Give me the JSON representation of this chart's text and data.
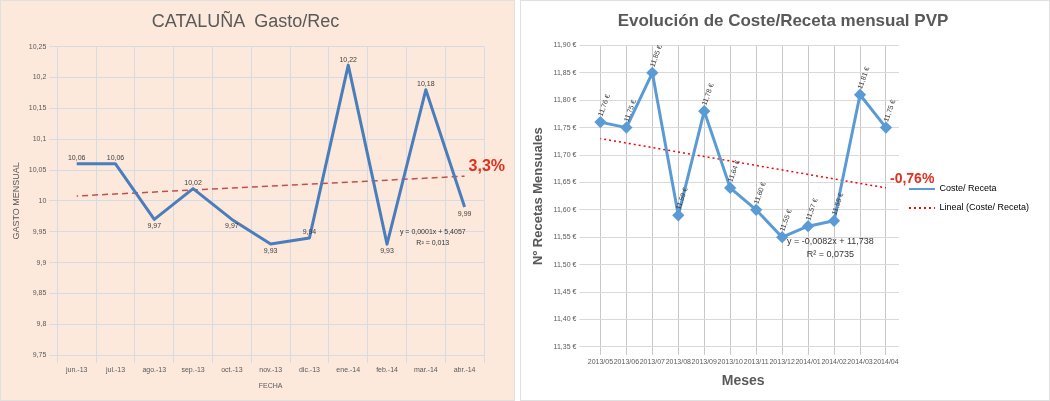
{
  "chart_data": [
    {
      "type": "line",
      "title": "CATALUÑA  Gasto/Rec",
      "xlabel": "FECHA",
      "ylabel": "GASTO MENSUAL",
      "categories": [
        "jun.-13",
        "jul.-13",
        "ago.-13",
        "sep.-13",
        "oct.-13",
        "nov.-13",
        "dic.-13",
        "ene.-14",
        "feb.-14",
        "mar.-14",
        "abr.-14"
      ],
      "series": [
        {
          "color": "#4a7ebb",
          "values": [
            10.06,
            10.06,
            9.97,
            10.02,
            9.97,
            9.93,
            9.94,
            10.22,
            9.93,
            10.18,
            9.99
          ],
          "value_labels": [
            "10,06",
            "10,06",
            "9,97",
            "10,02",
            "9,97",
            "9,93",
            "9,94",
            "10,22",
            "9,93",
            "10,18",
            "9,99"
          ]
        },
        {
          "type": "line",
          "color": "#c0504d",
          "line_style": "dashed",
          "x": [
            "jun.-13",
            "abr.-14"
          ],
          "values": [
            10.008,
            10.04
          ]
        }
      ],
      "ylim": [
        9.75,
        10.25
      ],
      "yticks": [
        {
          "value": 9.75,
          "label": "9,75"
        },
        {
          "value": 9.8,
          "label": "9,8"
        },
        {
          "value": 9.85,
          "label": "9,85"
        },
        {
          "value": 9.9,
          "label": "9,9"
        },
        {
          "value": 9.95,
          "label": "9,95"
        },
        {
          "value": 10,
          "label": "10"
        },
        {
          "value": 10.05,
          "label": "10,05"
        },
        {
          "value": 10.1,
          "label": "10,1"
        },
        {
          "value": 10.15,
          "label": "10,15"
        },
        {
          "value": 10.2,
          "label": "10,2"
        },
        {
          "value": 10.25,
          "label": "10,25"
        }
      ],
      "grid": true,
      "annotations": [
        "3,3%",
        "y = 0,0001x + 5,4057",
        "R² = 0,013"
      ]
    },
    {
      "type": "line",
      "title": "Evolución de Coste/Receta mensual PVP",
      "xlabel": "Meses",
      "ylabel": "Nº Recetas Mensuales",
      "categories": [
        "2013/05",
        "2013/06",
        "2013/07",
        "2013/08",
        "2013/09",
        "2013/10",
        "2013/11",
        "2013/12",
        "2014/01",
        "2014/02",
        "2014/03",
        "2014/04"
      ],
      "series": [
        {
          "name": "Coste/ Receta",
          "color": "#5b9bd5",
          "values": [
            11.76,
            11.75,
            11.85,
            11.59,
            11.78,
            11.64,
            11.6,
            11.55,
            11.57,
            11.58,
            11.81,
            11.75
          ],
          "value_labels": [
            "11,76 €",
            "11,75 €",
            "11,85 €",
            "11,59 €",
            "11,78 €",
            "11,64 €",
            "11,60 €",
            "11,55 €",
            "11,57 €",
            "11,58 €",
            "11,81 €",
            "11,75 €"
          ]
        },
        {
          "name": "Lineal (Coste/ Receta)",
          "type": "line",
          "color": "#ff0000",
          "line_style": "dotted",
          "marker": "none",
          "x": [
            "2013/05",
            "2014/04"
          ],
          "values": [
            11.73,
            11.64
          ]
        }
      ],
      "ylim": [
        11.35,
        11.9
      ],
      "yticks": [
        {
          "value": 11.35,
          "label": "11,35 €"
        },
        {
          "value": 11.4,
          "label": "11,40 €"
        },
        {
          "value": 11.45,
          "label": "11,45 €"
        },
        {
          "value": 11.5,
          "label": "11,50 €"
        },
        {
          "value": 11.55,
          "label": "11,55 €"
        },
        {
          "value": 11.6,
          "label": "11,60 €"
        },
        {
          "value": 11.65,
          "label": "11,65 €"
        },
        {
          "value": 11.7,
          "label": "11,70 €"
        },
        {
          "value": 11.75,
          "label": "11,75 €"
        },
        {
          "value": 11.8,
          "label": "11,80 €"
        },
        {
          "value": 11.85,
          "label": "11,85 €"
        },
        {
          "value": 11.9,
          "label": "11,90 €"
        }
      ],
      "grid": true,
      "marker": "diamond",
      "legend": "right",
      "annotations": [
        "-0,76%",
        "y = -0,0082x + 11,738",
        "R² = 0,0735"
      ]
    }
  ]
}
